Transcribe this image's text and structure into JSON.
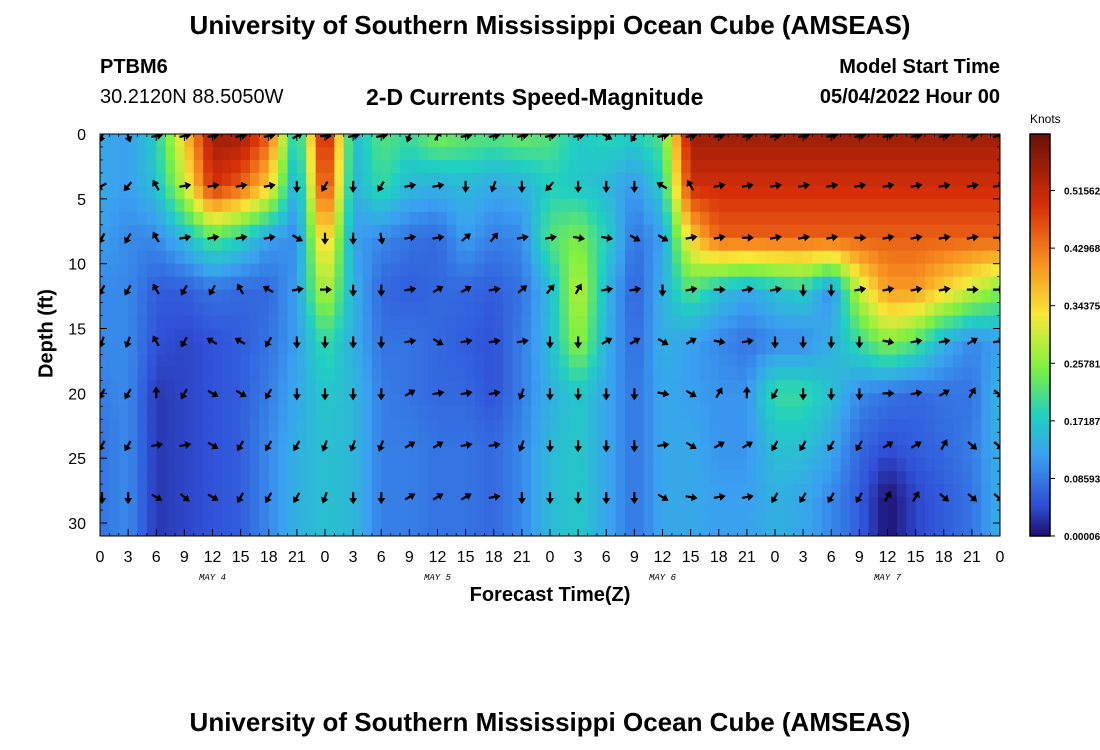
{
  "header": {
    "title": "University of Southern Mississippi Ocean Cube (AMSEAS)",
    "station": "PTBM6",
    "coordinates": "30.2120N  88.5050W",
    "subtitle": "2-D Currents Speed-Magnitude",
    "model_start_label": "Model Start Time",
    "model_start_time": "05/04/2022 Hour 00"
  },
  "footer": {
    "title": "University of Southern Mississippi Ocean Cube (AMSEAS)"
  },
  "chart_data": {
    "type": "heatmap",
    "title": "2-D Currents Speed-Magnitude",
    "xlabel": "Forecast Time(Z)",
    "ylabel": "Depth (ft)",
    "x_range_hours": [
      0,
      96
    ],
    "x_tick_hours": [
      0,
      3,
      6,
      9,
      12,
      15,
      18,
      21,
      24,
      27,
      30,
      33,
      36,
      39,
      42,
      45,
      48,
      51,
      54,
      57,
      60,
      63,
      66,
      69,
      72,
      75,
      78,
      81,
      84,
      87,
      90,
      93,
      96
    ],
    "x_tick_labels": [
      "0",
      "3",
      "6",
      "9",
      "12",
      "15",
      "18",
      "21",
      "0",
      "3",
      "6",
      "9",
      "12",
      "15",
      "18",
      "21",
      "0",
      "3",
      "6",
      "9",
      "12",
      "15",
      "18",
      "21",
      "0",
      "3",
      "6",
      "9",
      "12",
      "15",
      "18",
      "21",
      "0"
    ],
    "day_labels": [
      {
        "label": "MAY 4",
        "hour": 12
      },
      {
        "label": "MAY 5",
        "hour": 36
      },
      {
        "label": "MAY 6",
        "hour": 60
      },
      {
        "label": "MAY 7",
        "hour": 84
      }
    ],
    "y_range_ft": [
      0,
      31
    ],
    "y_ticks": [
      0,
      5,
      10,
      15,
      20,
      25,
      30
    ],
    "colorbar": {
      "unit": "Knots",
      "vmin": 0.0,
      "vmax": 0.6,
      "ticks": [
        6e-05,
        0.08593,
        0.17187,
        0.25781,
        0.34375,
        0.42968,
        0.51562
      ],
      "tick_labels": [
        "0.00006",
        "0.08593",
        "0.17187",
        "0.25781",
        "0.34375",
        "0.42968",
        "0.51562"
      ]
    },
    "depths_ft": [
      0,
      4,
      8,
      12,
      16,
      20,
      24,
      28
    ],
    "times_h": [
      0,
      3,
      6,
      9,
      12,
      15,
      18,
      21,
      24,
      27,
      30,
      33,
      36,
      39,
      42,
      45,
      48,
      51,
      54,
      57,
      60,
      63,
      66,
      69,
      72,
      75,
      78,
      81,
      84,
      87,
      90,
      93,
      96
    ],
    "speed_knots": [
      [
        0.13,
        0.12,
        0.18,
        0.35,
        0.55,
        0.55,
        0.45,
        0.15,
        0.55,
        0.15,
        0.22,
        0.2,
        0.25,
        0.23,
        0.22,
        0.24,
        0.22,
        0.17,
        0.19,
        0.18,
        0.22,
        0.55,
        0.55,
        0.55,
        0.55,
        0.55,
        0.55,
        0.55,
        0.55,
        0.55,
        0.55,
        0.55,
        0.55
      ],
      [
        0.13,
        0.12,
        0.16,
        0.3,
        0.5,
        0.45,
        0.35,
        0.12,
        0.5,
        0.14,
        0.2,
        0.15,
        0.14,
        0.15,
        0.13,
        0.14,
        0.18,
        0.17,
        0.15,
        0.11,
        0.18,
        0.5,
        0.5,
        0.5,
        0.5,
        0.5,
        0.5,
        0.5,
        0.5,
        0.5,
        0.5,
        0.5,
        0.5
      ],
      [
        0.12,
        0.1,
        0.1,
        0.15,
        0.22,
        0.18,
        0.12,
        0.1,
        0.38,
        0.12,
        0.1,
        0.08,
        0.07,
        0.12,
        0.09,
        0.1,
        0.22,
        0.25,
        0.18,
        0.08,
        0.12,
        0.35,
        0.45,
        0.45,
        0.45,
        0.45,
        0.45,
        0.45,
        0.45,
        0.45,
        0.45,
        0.45,
        0.45
      ],
      [
        0.1,
        0.1,
        0.06,
        0.06,
        0.08,
        0.07,
        0.07,
        0.12,
        0.3,
        0.14,
        0.07,
        0.06,
        0.07,
        0.07,
        0.06,
        0.08,
        0.15,
        0.3,
        0.15,
        0.06,
        0.14,
        0.22,
        0.16,
        0.13,
        0.16,
        0.18,
        0.1,
        0.3,
        0.4,
        0.4,
        0.35,
        0.3,
        0.25
      ],
      [
        0.1,
        0.1,
        0.05,
        0.04,
        0.05,
        0.06,
        0.08,
        0.12,
        0.2,
        0.14,
        0.08,
        0.08,
        0.07,
        0.06,
        0.05,
        0.09,
        0.15,
        0.27,
        0.14,
        0.07,
        0.14,
        0.12,
        0.1,
        0.08,
        0.1,
        0.1,
        0.14,
        0.2,
        0.26,
        0.22,
        0.14,
        0.1,
        0.12
      ],
      [
        0.09,
        0.1,
        0.03,
        0.04,
        0.05,
        0.06,
        0.09,
        0.13,
        0.17,
        0.15,
        0.09,
        0.08,
        0.07,
        0.07,
        0.05,
        0.09,
        0.14,
        0.17,
        0.13,
        0.08,
        0.13,
        0.12,
        0.11,
        0.11,
        0.2,
        0.2,
        0.16,
        0.1,
        0.08,
        0.07,
        0.08,
        0.08,
        0.15
      ],
      [
        0.08,
        0.1,
        0.03,
        0.04,
        0.05,
        0.06,
        0.1,
        0.14,
        0.16,
        0.15,
        0.09,
        0.09,
        0.08,
        0.08,
        0.07,
        0.1,
        0.15,
        0.17,
        0.13,
        0.08,
        0.13,
        0.13,
        0.11,
        0.11,
        0.16,
        0.16,
        0.13,
        0.07,
        0.05,
        0.06,
        0.07,
        0.09,
        0.14
      ],
      [
        0.08,
        0.1,
        0.03,
        0.04,
        0.05,
        0.06,
        0.1,
        0.14,
        0.16,
        0.15,
        0.09,
        0.09,
        0.08,
        0.08,
        0.07,
        0.1,
        0.15,
        0.17,
        0.13,
        0.08,
        0.13,
        0.13,
        0.12,
        0.12,
        0.14,
        0.13,
        0.1,
        0.06,
        0.0,
        0.04,
        0.06,
        0.08,
        0.14
      ]
    ],
    "arrow_directions_deg": [
      [
        200,
        160,
        80,
        80,
        80,
        80,
        80,
        60,
        90,
        80,
        80,
        200,
        30,
        80,
        80,
        80,
        80,
        80,
        120,
        210,
        80,
        80,
        80,
        80,
        80,
        80,
        80,
        80,
        80,
        80,
        80,
        80,
        80
      ],
      [
        240,
        220,
        330,
        80,
        80,
        80,
        80,
        180,
        210,
        180,
        210,
        80,
        80,
        180,
        200,
        180,
        220,
        180,
        180,
        180,
        300,
        330,
        80,
        80,
        80,
        80,
        80,
        80,
        80,
        80,
        80,
        80,
        80
      ],
      [
        210,
        210,
        330,
        80,
        80,
        80,
        80,
        120,
        180,
        180,
        170,
        80,
        80,
        50,
        40,
        80,
        80,
        100,
        100,
        120,
        120,
        80,
        80,
        90,
        80,
        80,
        80,
        90,
        80,
        80,
        80,
        80,
        90
      ],
      [
        210,
        210,
        330,
        210,
        210,
        330,
        300,
        80,
        90,
        180,
        180,
        80,
        60,
        60,
        80,
        50,
        40,
        30,
        80,
        80,
        180,
        80,
        90,
        80,
        80,
        180,
        180,
        80,
        80,
        80,
        80,
        90,
        90
      ],
      [
        200,
        200,
        330,
        210,
        300,
        300,
        210,
        180,
        180,
        180,
        180,
        80,
        120,
        80,
        80,
        80,
        180,
        180,
        60,
        60,
        120,
        60,
        100,
        80,
        180,
        180,
        180,
        180,
        100,
        80,
        80,
        60,
        80
      ],
      [
        210,
        210,
        0,
        210,
        120,
        120,
        210,
        180,
        180,
        180,
        180,
        60,
        80,
        80,
        80,
        200,
        180,
        180,
        180,
        180,
        100,
        120,
        30,
        0,
        210,
        180,
        180,
        180,
        90,
        80,
        60,
        30,
        130
      ],
      [
        210,
        210,
        80,
        80,
        120,
        210,
        210,
        210,
        200,
        200,
        200,
        60,
        60,
        80,
        80,
        200,
        180,
        180,
        180,
        180,
        80,
        120,
        60,
        60,
        210,
        210,
        210,
        210,
        60,
        60,
        30,
        130,
        130
      ],
      [
        180,
        180,
        120,
        130,
        120,
        210,
        210,
        210,
        200,
        180,
        180,
        60,
        60,
        60,
        80,
        180,
        180,
        180,
        180,
        180,
        120,
        100,
        80,
        80,
        210,
        210,
        210,
        210,
        30,
        30,
        130,
        130,
        130
      ]
    ]
  }
}
